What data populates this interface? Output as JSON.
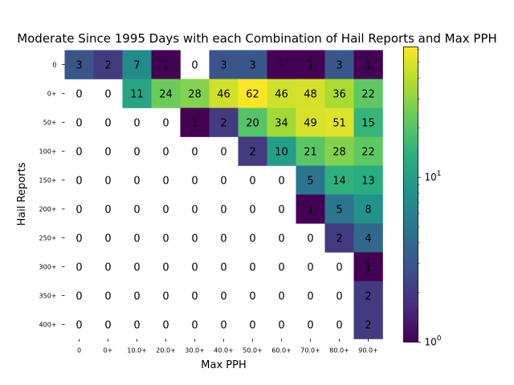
{
  "chart_data": {
    "type": "heatmap",
    "title": "Moderate Since 1995 Days with each Combination of Hail Reports and Max PPH",
    "xlabel": "Max PPH",
    "ylabel": "Hail Reports",
    "x_categories": [
      "0",
      "0+",
      "10.0+",
      "20.0+",
      "30.0+",
      "40.0+",
      "50.0+",
      "60.0+",
      "70.0+",
      "80.0+",
      "90.0+"
    ],
    "y_categories": [
      "0",
      "0+",
      "50+",
      "100+",
      "150+",
      "200+",
      "250+",
      "300+",
      "350+",
      "400+"
    ],
    "values": [
      [
        3,
        2,
        7,
        1,
        0,
        3,
        3,
        1,
        1,
        3,
        1
      ],
      [
        0,
        0,
        11,
        24,
        28,
        46,
        62,
        46,
        48,
        36,
        22
      ],
      [
        0,
        0,
        0,
        0,
        1,
        2,
        20,
        34,
        49,
        51,
        15
      ],
      [
        0,
        0,
        0,
        0,
        0,
        0,
        2,
        10,
        21,
        28,
        22
      ],
      [
        0,
        0,
        0,
        0,
        0,
        0,
        0,
        0,
        5,
        14,
        13
      ],
      [
        0,
        0,
        0,
        0,
        0,
        0,
        0,
        0,
        1,
        5,
        8
      ],
      [
        0,
        0,
        0,
        0,
        0,
        0,
        0,
        0,
        0,
        2,
        4
      ],
      [
        0,
        0,
        0,
        0,
        0,
        0,
        0,
        0,
        0,
        0,
        1
      ],
      [
        0,
        0,
        0,
        0,
        0,
        0,
        0,
        0,
        0,
        0,
        2
      ],
      [
        0,
        0,
        0,
        0,
        0,
        0,
        0,
        0,
        0,
        0,
        2
      ]
    ],
    "colormap": "viridis",
    "color_scale": "log",
    "color_range": [
      1,
      62
    ],
    "colorbar_labels": [
      "10^0",
      "10^1"
    ],
    "colorbar_ticks": [
      1,
      10
    ]
  }
}
